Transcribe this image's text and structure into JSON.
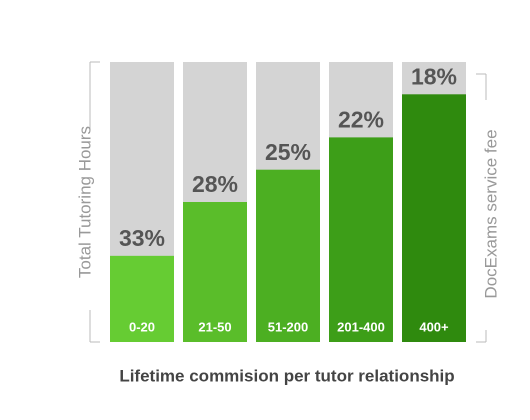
{
  "chart_data": {
    "type": "bar",
    "x_label": "Lifetime commision per tutor relationship",
    "y_label": "Total Tutoring Hours",
    "y2_label": "DocExams service fee",
    "categories": [
      "0-20",
      "21-50",
      "51-200",
      "201-400",
      "400+"
    ],
    "values": [
      33,
      28,
      25,
      22,
      18
    ],
    "value_labels": [
      "33%",
      "28%",
      "25%",
      "22%",
      "18%"
    ],
    "colors": [
      "#66cc33",
      "#5abd2a",
      "#4caf22",
      "#3d9e18",
      "#2f8a0e"
    ],
    "background_color": "#d4d4d4",
    "ylim": [
      41,
      15
    ]
  }
}
